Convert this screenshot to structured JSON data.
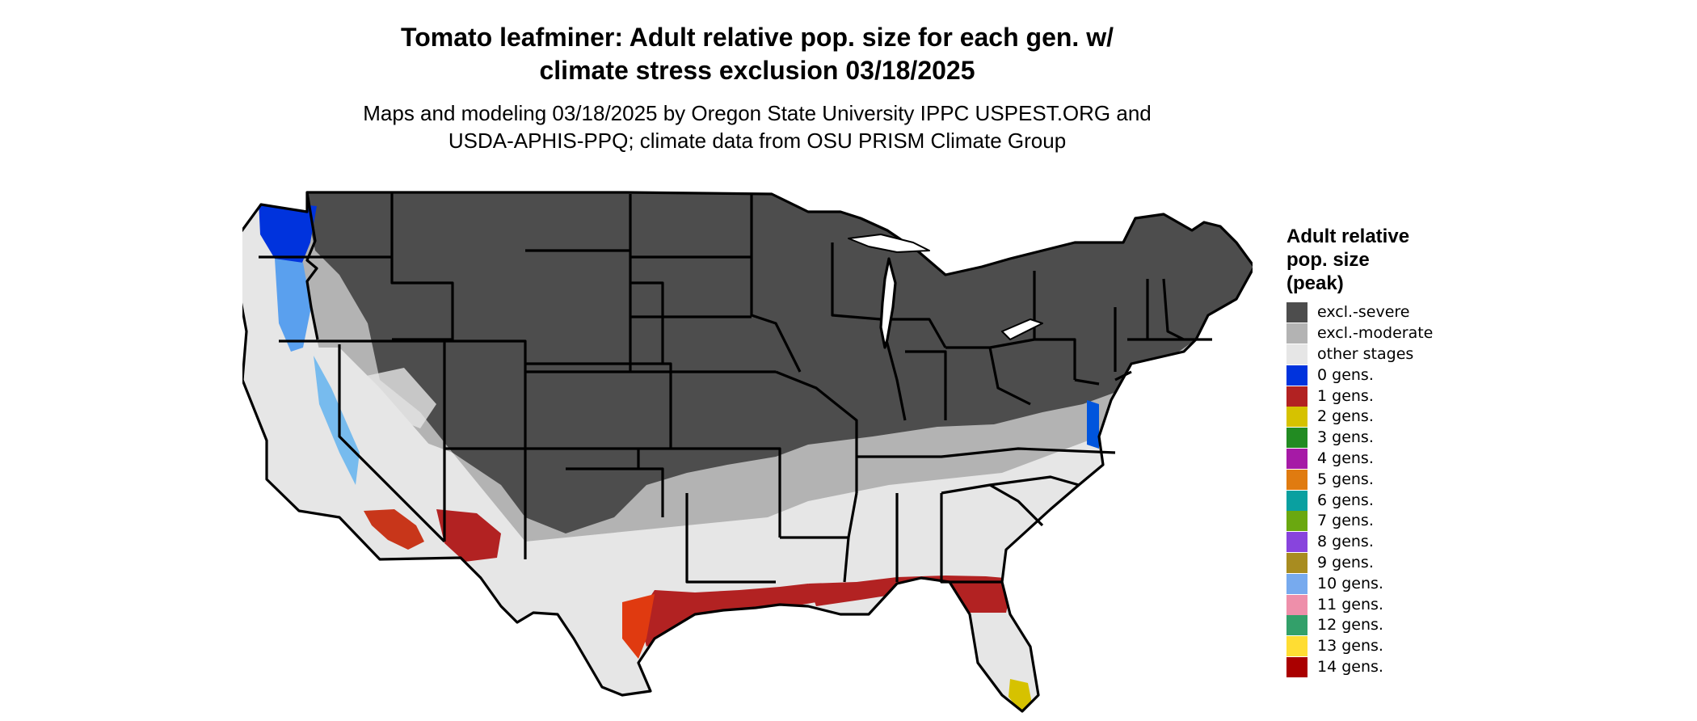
{
  "title_line1": "Tomato leafminer: Adult relative pop. size for each gen. w/",
  "title_line2": "climate stress exclusion 03/18/2025",
  "subtitle_line1": "Maps and modeling 03/18/2025 by Oregon State University IPPC USPEST.ORG and",
  "subtitle_line2": "USDA-APHIS-PPQ; climate data from OSU PRISM Climate Group",
  "map": {
    "region": "Contiguous United States",
    "colors": {
      "excl_severe": "#4d4d4d",
      "excl_moderate": "#b3b3b3",
      "other_stages": "#e6e6e6",
      "gen0": "#0033dd",
      "gen1": "#b22222",
      "gen1_edge": "#e03a10",
      "gen2": "#d6c200",
      "water": "#ffffff",
      "state_border": "#000000"
    }
  },
  "legend": {
    "title_lines": [
      "Adult relative",
      "pop. size",
      "(peak)"
    ],
    "items": [
      {
        "label": "excl.-severe",
        "color": "#4d4d4d"
      },
      {
        "label": "excl.-moderate",
        "color": "#b3b3b3"
      },
      {
        "label": "other stages",
        "color": "#e6e6e6"
      },
      {
        "label": "0 gens.",
        "color": "#0033dd"
      },
      {
        "label": "1 gens.",
        "color": "#b22222"
      },
      {
        "label": "2 gens.",
        "color": "#d6c200"
      },
      {
        "label": "3 gens.",
        "color": "#228b22"
      },
      {
        "label": "4 gens.",
        "color": "#a61aa6"
      },
      {
        "label": "5 gens.",
        "color": "#e07b10"
      },
      {
        "label": "6 gens.",
        "color": "#0aa0a0"
      },
      {
        "label": "7 gens.",
        "color": "#6aa810"
      },
      {
        "label": "8 gens.",
        "color": "#8844dd"
      },
      {
        "label": "9 gens.",
        "color": "#a88c20"
      },
      {
        "label": "10 gens.",
        "color": "#77aaee"
      },
      {
        "label": "11 gens.",
        "color": "#ee8faa"
      },
      {
        "label": "12 gens.",
        "color": "#33a06a"
      },
      {
        "label": "13 gens.",
        "color": "#ffdd33"
      },
      {
        "label": "14 gens.",
        "color": "#aa0000"
      }
    ]
  }
}
